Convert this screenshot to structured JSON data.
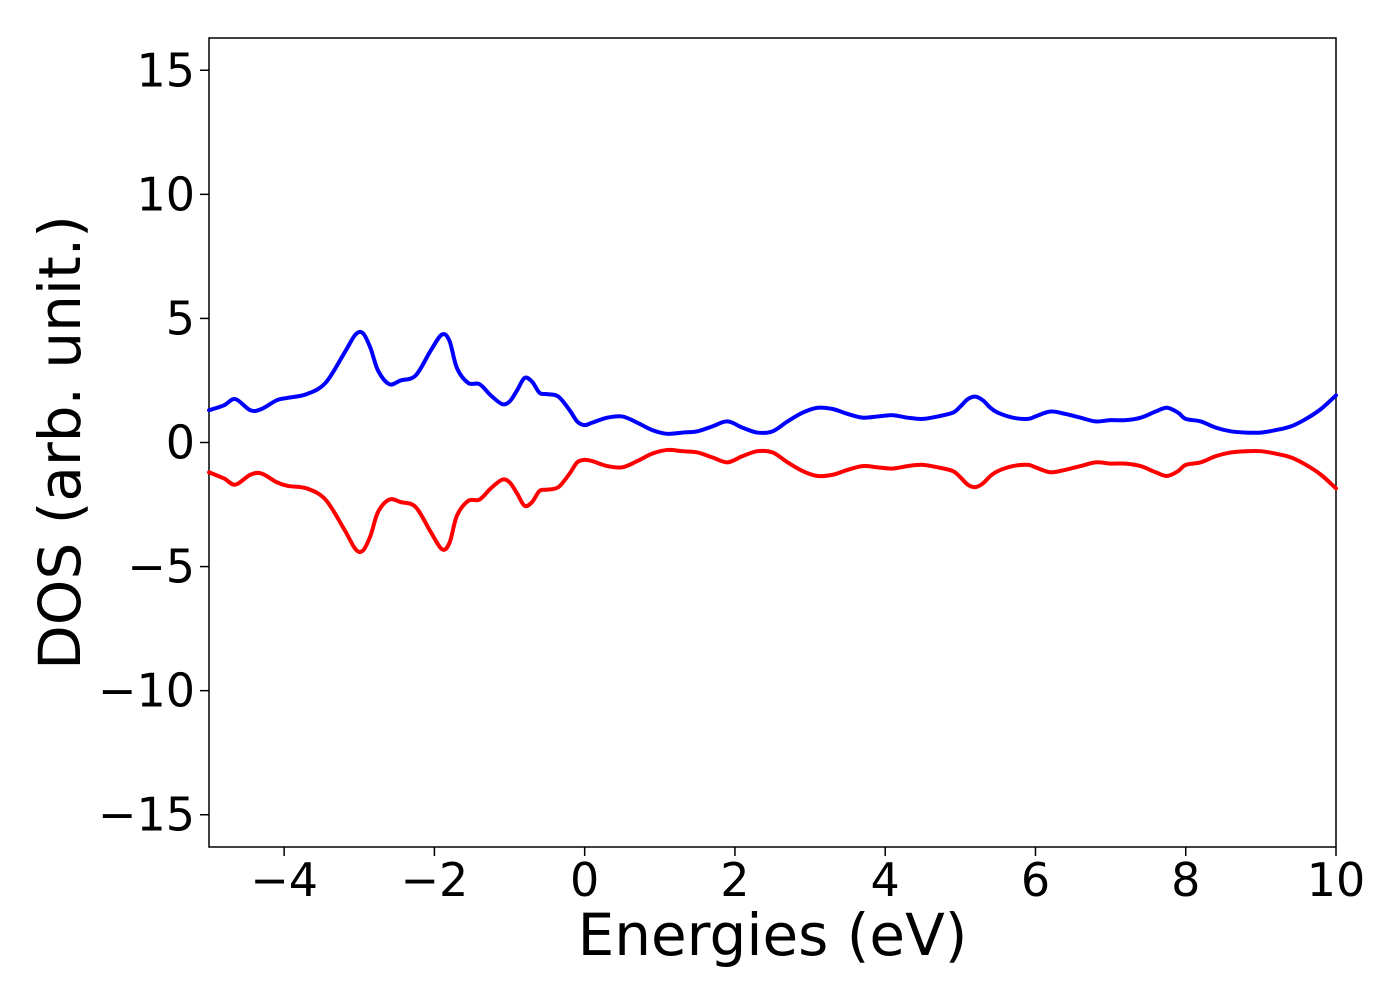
{
  "chart_data": {
    "type": "line",
    "title": "",
    "xlabel": "Energies (eV)",
    "ylabel": "DOS (arb. unit.)",
    "xlim": [
      -5,
      10
    ],
    "ylim": [
      -16.3,
      16.3
    ],
    "xticks": [
      -4,
      -2,
      0,
      2,
      4,
      6,
      8,
      10
    ],
    "xtick_labels": [
      "−4",
      "−2",
      "0",
      "2",
      "4",
      "6",
      "8",
      "10"
    ],
    "yticks": [
      15,
      10,
      5,
      0,
      -5,
      -10,
      -15
    ],
    "ytick_labels": [
      "15",
      "10",
      "5",
      "0",
      "−5",
      "−10",
      "−15"
    ],
    "grid": false,
    "legend": "none",
    "series": [
      {
        "color": "#0000ff",
        "x": [
          -5.0,
          -4.8,
          -4.65,
          -4.45,
          -4.3,
          -4.1,
          -3.95,
          -3.7,
          -3.45,
          -3.2,
          -3.05,
          -2.95,
          -2.85,
          -2.75,
          -2.6,
          -2.45,
          -2.25,
          -2.05,
          -1.9,
          -1.8,
          -1.7,
          -1.55,
          -1.4,
          -1.25,
          -1.1,
          -1.0,
          -0.9,
          -0.8,
          -0.7,
          -0.6,
          -0.5,
          -0.35,
          -0.2,
          -0.1,
          0.0,
          0.1,
          0.3,
          0.5,
          0.7,
          0.9,
          1.1,
          1.3,
          1.5,
          1.7,
          1.9,
          2.1,
          2.3,
          2.5,
          2.7,
          2.9,
          3.1,
          3.3,
          3.5,
          3.7,
          3.9,
          4.1,
          4.3,
          4.5,
          4.7,
          4.9,
          5.0,
          5.1,
          5.2,
          5.3,
          5.4,
          5.5,
          5.7,
          5.9,
          6.0,
          6.2,
          6.4,
          6.6,
          6.8,
          7.0,
          7.2,
          7.4,
          7.6,
          7.75,
          7.9,
          8.0,
          8.2,
          8.4,
          8.6,
          8.8,
          9.0,
          9.2,
          9.4,
          9.6,
          9.8,
          10.0
        ],
        "y": [
          1.3,
          1.5,
          1.75,
          1.3,
          1.35,
          1.7,
          1.8,
          1.95,
          2.4,
          3.6,
          4.35,
          4.4,
          3.8,
          2.9,
          2.35,
          2.5,
          2.7,
          3.7,
          4.35,
          4.1,
          3.0,
          2.4,
          2.35,
          1.9,
          1.55,
          1.65,
          2.1,
          2.6,
          2.45,
          2.0,
          1.95,
          1.85,
          1.3,
          0.85,
          0.7,
          0.8,
          1.0,
          1.05,
          0.8,
          0.5,
          0.35,
          0.4,
          0.45,
          0.65,
          0.85,
          0.6,
          0.4,
          0.45,
          0.85,
          1.2,
          1.4,
          1.35,
          1.15,
          1.0,
          1.05,
          1.1,
          1.0,
          0.95,
          1.05,
          1.2,
          1.45,
          1.75,
          1.85,
          1.7,
          1.4,
          1.2,
          1.0,
          0.95,
          1.05,
          1.25,
          1.15,
          1.0,
          0.85,
          0.9,
          0.9,
          1.0,
          1.25,
          1.4,
          1.2,
          0.95,
          0.85,
          0.6,
          0.45,
          0.4,
          0.4,
          0.5,
          0.65,
          0.95,
          1.35,
          1.9
        ]
      },
      {
        "color": "#ff0000",
        "x": [
          -5.0,
          -4.8,
          -4.65,
          -4.45,
          -4.3,
          -4.1,
          -3.95,
          -3.7,
          -3.45,
          -3.2,
          -3.05,
          -2.95,
          -2.85,
          -2.75,
          -2.6,
          -2.45,
          -2.25,
          -2.05,
          -1.9,
          -1.8,
          -1.7,
          -1.55,
          -1.4,
          -1.25,
          -1.1,
          -1.0,
          -0.9,
          -0.8,
          -0.7,
          -0.6,
          -0.5,
          -0.35,
          -0.2,
          -0.1,
          0.0,
          0.1,
          0.3,
          0.5,
          0.7,
          0.9,
          1.1,
          1.3,
          1.5,
          1.7,
          1.9,
          2.1,
          2.3,
          2.5,
          2.7,
          2.9,
          3.1,
          3.3,
          3.5,
          3.7,
          3.9,
          4.1,
          4.3,
          4.5,
          4.7,
          4.9,
          5.0,
          5.1,
          5.2,
          5.3,
          5.4,
          5.5,
          5.7,
          5.9,
          6.0,
          6.2,
          6.4,
          6.6,
          6.8,
          7.0,
          7.2,
          7.4,
          7.6,
          7.75,
          7.9,
          8.0,
          8.2,
          8.4,
          8.6,
          8.8,
          9.0,
          9.2,
          9.4,
          9.6,
          9.8,
          10.0
        ],
        "y": [
          -1.2,
          -1.45,
          -1.7,
          -1.3,
          -1.25,
          -1.6,
          -1.75,
          -1.85,
          -2.3,
          -3.5,
          -4.3,
          -4.35,
          -3.75,
          -2.8,
          -2.3,
          -2.4,
          -2.6,
          -3.6,
          -4.3,
          -4.05,
          -2.95,
          -2.35,
          -2.3,
          -1.85,
          -1.5,
          -1.6,
          -2.05,
          -2.55,
          -2.4,
          -1.95,
          -1.9,
          -1.8,
          -1.25,
          -0.8,
          -0.7,
          -0.75,
          -0.95,
          -1.0,
          -0.75,
          -0.45,
          -0.3,
          -0.35,
          -0.4,
          -0.6,
          -0.8,
          -0.55,
          -0.35,
          -0.4,
          -0.8,
          -1.15,
          -1.35,
          -1.3,
          -1.1,
          -0.95,
          -1.0,
          -1.05,
          -0.95,
          -0.9,
          -1.0,
          -1.15,
          -1.4,
          -1.7,
          -1.8,
          -1.65,
          -1.35,
          -1.15,
          -0.95,
          -0.9,
          -1.0,
          -1.2,
          -1.1,
          -0.95,
          -0.8,
          -0.85,
          -0.85,
          -0.95,
          -1.2,
          -1.35,
          -1.15,
          -0.9,
          -0.8,
          -0.55,
          -0.4,
          -0.35,
          -0.35,
          -0.45,
          -0.6,
          -0.9,
          -1.3,
          -1.85
        ]
      }
    ]
  }
}
